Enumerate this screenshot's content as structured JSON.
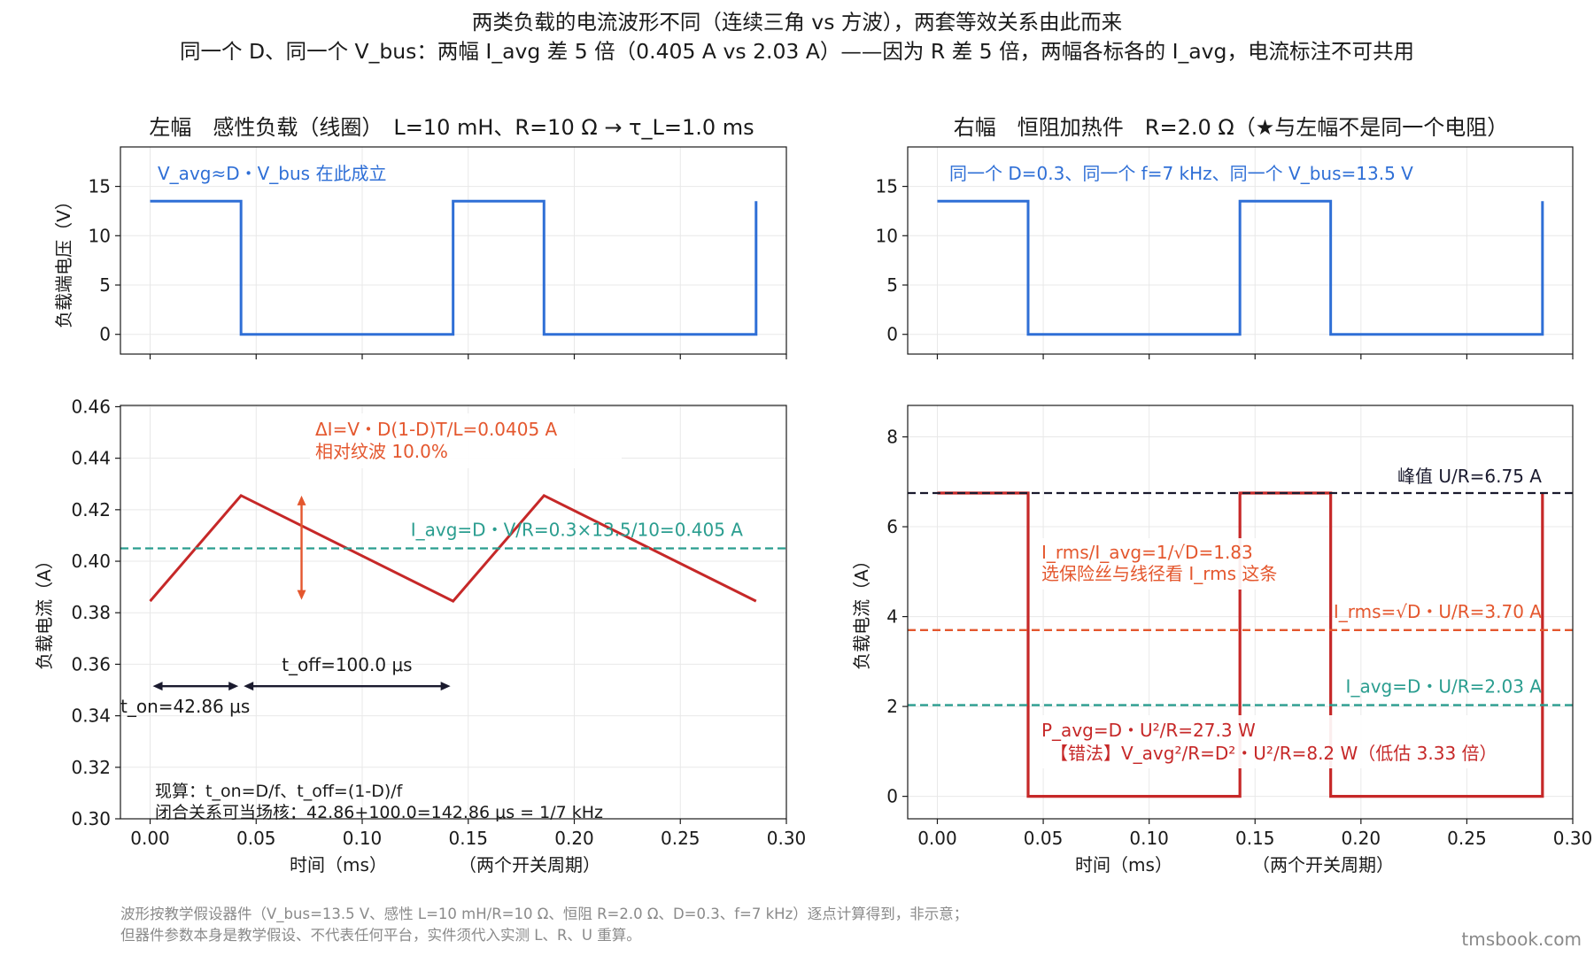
{
  "figure": {
    "title_line1": "两类负载的电流波形不同（连续三角 vs 方波），两套等效关系由此而来",
    "title_line2": "同一个 D、同一个 V_bus：两幅 I_avg 差 5 倍（0.405 A vs 2.03 A）——因为 R 差 5 倍，两幅各标各的 I_avg，电流标注不可共用",
    "footer_line1": "波形按教学假设器件（V_bus=13.5 V、感性 L=10 mH/R=10 Ω、恒阻 R=2.0 Ω、D=0.3、f=7 kHz）逐点计算得到，非示意；",
    "footer_line2": "但器件参数本身是教学假设、不代表任何平台，实件须代入实测 L、R、U 重算。",
    "brand": "tmsbook.com",
    "xlabel_left": "时间（ms）",
    "xlabel_right": "（两个开关周期）"
  },
  "colors": {
    "voltage": "#2f6fd6",
    "inductive_current": "#c62828",
    "resistive_current": "#c62828",
    "avg_line": "#2a9d8f",
    "rms_line": "#e4572e",
    "peak_line": "#1a1a2e",
    "ripple_arrow": "#e4572e",
    "time_arrow": "#1a1a2e",
    "grid": "#e8e8e8"
  },
  "chart_data": [
    {
      "id": "left-voltage",
      "type": "line",
      "title": "左幅　感性负载（线圈）　L=10 mH、R=10 Ω → τ_L=1.0 ms",
      "ylabel": "负载端电压（V）",
      "xlabel": "",
      "xlim": [
        -0.014,
        0.3
      ],
      "ylim": [
        -2,
        19
      ],
      "xticks": [
        0.0,
        0.05,
        0.1,
        0.15,
        0.2,
        0.25,
        0.3
      ],
      "xtick_labels_visible": false,
      "yticks": [
        0,
        5,
        10,
        15
      ],
      "grid": true,
      "series": [
        {
          "x": [
            0,
            0.04286,
            0.04286,
            0.14286,
            0.14286,
            0.18571,
            0.18571,
            0.28571,
            0.28571
          ],
          "y": [
            13.5,
            13.5,
            0,
            0,
            13.5,
            13.5,
            0,
            0,
            13.5
          ]
        }
      ],
      "annotation": "V_avg≈D・V_bus 在此成立"
    },
    {
      "id": "left-current",
      "type": "line",
      "ylabel": "负载电流（A）",
      "xlim": [
        -0.014,
        0.3
      ],
      "ylim": [
        0.3,
        0.4605
      ],
      "xticks": [
        0.0,
        0.05,
        0.1,
        0.15,
        0.2,
        0.25,
        0.3
      ],
      "xtick_labels": [
        "0.00",
        "0.05",
        "0.10",
        "0.15",
        "0.20",
        "0.25",
        "0.30"
      ],
      "yticks": [
        0.3,
        0.32,
        0.34,
        0.36,
        0.38,
        0.4,
        0.42,
        0.44,
        0.46
      ],
      "ytick_labels": [
        "0.30",
        "0.32",
        "0.34",
        "0.36",
        "0.38",
        "0.40",
        "0.42",
        "0.44",
        "0.46"
      ],
      "grid": true,
      "series": [
        {
          "x": [
            0,
            0.04286,
            0.14286,
            0.18571,
            0.28571
          ],
          "y": [
            0.3845,
            0.4255,
            0.3845,
            0.4255,
            0.3845
          ]
        }
      ],
      "hlines": [
        {
          "y": 0.405,
          "label": "I_avg=D・V/R=0.3×13.5/10=0.405 A"
        }
      ],
      "ripple_arrow": {
        "x": 0.0714,
        "y_low": 0.385,
        "y_high": 0.4255
      },
      "ripple_note_1": "ΔI=V・D(1-D)T/L=0.0405 A",
      "ripple_note_2": "相对纹波 10.0%",
      "t_on": {
        "from": 0.0,
        "to": 0.04286,
        "y": 0.3515,
        "label": "t_on=42.86 μs"
      },
      "t_off": {
        "from": 0.04286,
        "to": 0.14286,
        "y": 0.3515,
        "label": "t_off=100.0 μs"
      },
      "calc_note_1": "现算：t_on=D/f、t_off=(1-D)/f",
      "calc_note_2": "闭合关系可当场核：42.86+100.0=142.86 μs = 1/7 kHz"
    },
    {
      "id": "right-voltage",
      "type": "line",
      "title": "右幅　恒阻加热件　R=2.0 Ω（★与左幅不是同一个电阻）",
      "ylabel": "",
      "xlim": [
        -0.014,
        0.3
      ],
      "ylim": [
        -2,
        19
      ],
      "xticks": [
        0.0,
        0.05,
        0.1,
        0.15,
        0.2,
        0.25,
        0.3
      ],
      "xtick_labels_visible": false,
      "yticks": [
        0,
        5,
        10,
        15
      ],
      "grid": true,
      "series": [
        {
          "x": [
            0,
            0.04286,
            0.04286,
            0.14286,
            0.14286,
            0.18571,
            0.18571,
            0.28571,
            0.28571
          ],
          "y": [
            13.5,
            13.5,
            0,
            0,
            13.5,
            13.5,
            0,
            0,
            13.5
          ]
        }
      ],
      "annotation": "同一个 D=0.3、同一个 f=7 kHz、同一个 V_bus=13.5 V"
    },
    {
      "id": "right-current",
      "type": "line",
      "ylabel": "负载电流（A）",
      "xlim": [
        -0.014,
        0.3
      ],
      "ylim": [
        -0.5,
        8.7
      ],
      "xticks": [
        0.0,
        0.05,
        0.1,
        0.15,
        0.2,
        0.25,
        0.3
      ],
      "xtick_labels": [
        "0.00",
        "0.05",
        "0.10",
        "0.15",
        "0.20",
        "0.25",
        "0.30"
      ],
      "yticks": [
        0,
        2,
        4,
        6,
        8
      ],
      "grid": true,
      "series": [
        {
          "x": [
            0,
            0.04286,
            0.04286,
            0.14286,
            0.14286,
            0.18571,
            0.18571,
            0.28571,
            0.28571
          ],
          "y": [
            6.75,
            6.75,
            0,
            0,
            6.75,
            6.75,
            0,
            0,
            6.75
          ]
        }
      ],
      "hlines": [
        {
          "y": 6.75,
          "label": "峰值 U/R=6.75 A"
        },
        {
          "y": 3.7,
          "label": "I_rms=√D・U/R=3.70 A"
        },
        {
          "y": 2.03,
          "label": "I_avg=D・U/R=2.03 A"
        }
      ],
      "note_rms_1": "I_rms/I_avg=1/√D=1.83",
      "note_rms_2": "选保险丝与线径看 I_rms 这条",
      "note_p_1": "P_avg=D・U²/R=27.3 W",
      "note_p_2": "【错法】V_avg²/R=D²・U²/R=8.2 W（低估 3.33 倍）"
    }
  ]
}
